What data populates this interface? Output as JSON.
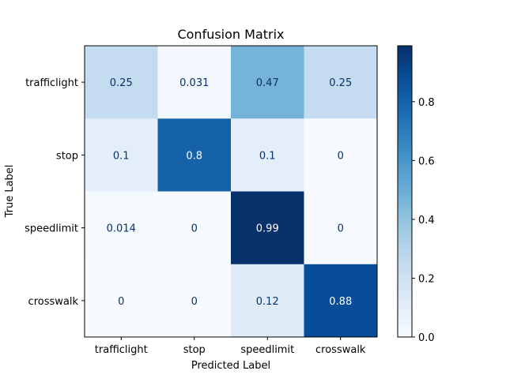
{
  "chart_data": {
    "type": "heatmap",
    "title": "Confusion Matrix",
    "xlabel": "Predicted Label",
    "ylabel": "True Label",
    "x_categories": [
      "trafficlight",
      "stop",
      "speedlimit",
      "crosswalk"
    ],
    "y_categories": [
      "trafficlight",
      "stop",
      "speedlimit",
      "crosswalk"
    ],
    "values": [
      [
        0.25,
        0.031,
        0.47,
        0.25
      ],
      [
        0.1,
        0.8,
        0.1,
        0
      ],
      [
        0.014,
        0,
        0.99,
        0
      ],
      [
        0,
        0,
        0.12,
        0.88
      ]
    ],
    "value_labels": [
      [
        "0.25",
        "0.031",
        "0.47",
        "0.25"
      ],
      [
        "0.1",
        "0.8",
        "0.1",
        "0"
      ],
      [
        "0.014",
        "0",
        "0.99",
        "0"
      ],
      [
        "0",
        "0",
        "0.12",
        "0.88"
      ]
    ],
    "colormap": "Blues",
    "colorbar": {
      "range": [
        0,
        0.99
      ],
      "ticks": [
        0.0,
        0.2,
        0.4,
        0.6,
        0.8
      ],
      "tick_labels": [
        "0.0",
        "0.2",
        "0.4",
        "0.6",
        "0.8"
      ]
    },
    "grid": false
  }
}
